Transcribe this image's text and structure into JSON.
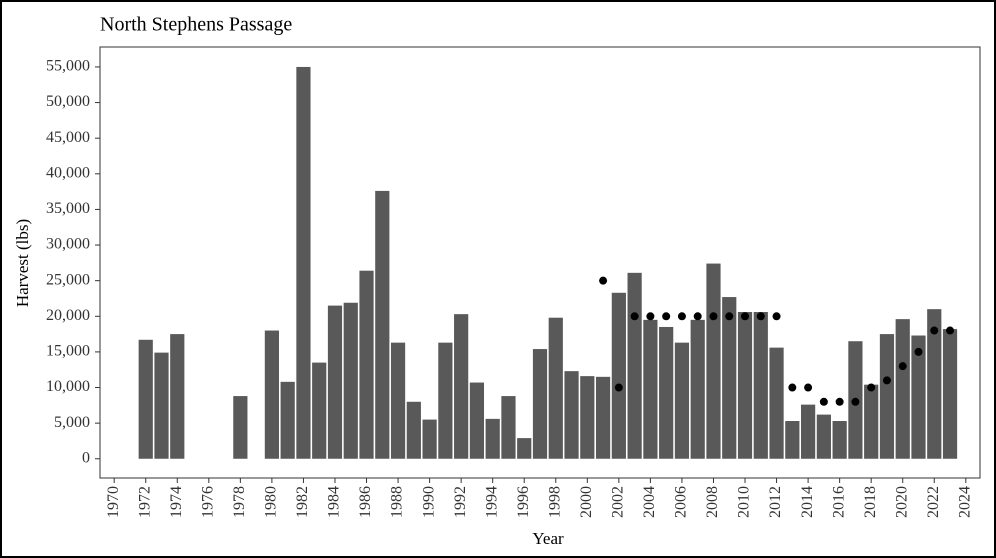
{
  "chart_data": {
    "type": "bar",
    "title": "North Stephens Passage",
    "x_label": "Year",
    "y_label": "Harvest (lbs)",
    "bars": {
      "color": "#595959",
      "x": [
        1972,
        1973,
        1974,
        1978,
        1980,
        1981,
        1982,
        1983,
        1984,
        1985,
        1986,
        1987,
        1988,
        1989,
        1990,
        1991,
        1992,
        1993,
        1994,
        1995,
        1996,
        1997,
        1998,
        1999,
        2000,
        2001,
        2002,
        2003,
        2004,
        2005,
        2006,
        2007,
        2008,
        2009,
        2010,
        2011,
        2012,
        2013,
        2014,
        2015,
        2016,
        2017,
        2018,
        2019,
        2020,
        2021,
        2022,
        2023
      ],
      "values": [
        16700,
        14900,
        17500,
        8800,
        18000,
        10800,
        55000,
        13500,
        21500,
        21900,
        26400,
        37600,
        16300,
        8000,
        5500,
        16300,
        20300,
        10700,
        5600,
        8800,
        2900,
        15400,
        19800,
        12300,
        11600,
        11500,
        23300,
        26100,
        19500,
        18500,
        16300,
        19500,
        27400,
        22700,
        20600,
        20600,
        15600,
        5300,
        7600,
        6200,
        5300,
        16500,
        10400,
        17500,
        19600,
        17300,
        21000,
        18200
      ]
    },
    "points": {
      "color": "#000000",
      "x": [
        2001,
        2002,
        2003,
        2004,
        2005,
        2006,
        2007,
        2008,
        2009,
        2010,
        2011,
        2012,
        2013,
        2014,
        2015,
        2016,
        2017,
        2018,
        2019,
        2020,
        2021,
        2022,
        2023
      ],
      "values": [
        25000,
        10000,
        20000,
        20000,
        20000,
        20000,
        20000,
        20000,
        20000,
        20000,
        20000,
        20000,
        10000,
        10000,
        8000,
        8000,
        8000,
        10000,
        11000,
        13000,
        15000,
        18000,
        18000
      ]
    },
    "xlim": [
      1969.1,
      2024.9
    ],
    "xticks": [
      1970,
      1972,
      1974,
      1976,
      1978,
      1980,
      1982,
      1984,
      1986,
      1988,
      1990,
      1992,
      1994,
      1996,
      1998,
      2000,
      2002,
      2004,
      2006,
      2008,
      2010,
      2012,
      2014,
      2016,
      2018,
      2020,
      2022,
      2024
    ],
    "ylim": [
      -2700,
      57800
    ],
    "yticks": [
      0,
      {
        "value": 5000,
        "label": "5,000"
      },
      {
        "value": 10000,
        "label": "10,000"
      },
      {
        "value": 15000,
        "label": "15,000"
      },
      {
        "value": 20000,
        "label": "20,000"
      },
      {
        "value": 25000,
        "label": "25,000"
      },
      {
        "value": 30000,
        "label": "30,000"
      },
      {
        "value": 35000,
        "label": "35,000"
      },
      {
        "value": 40000,
        "label": "40,000"
      },
      {
        "value": 45000,
        "label": "45,000"
      },
      {
        "value": 50000,
        "label": "50,000"
      },
      {
        "value": 55000,
        "label": "55,000"
      }
    ]
  }
}
